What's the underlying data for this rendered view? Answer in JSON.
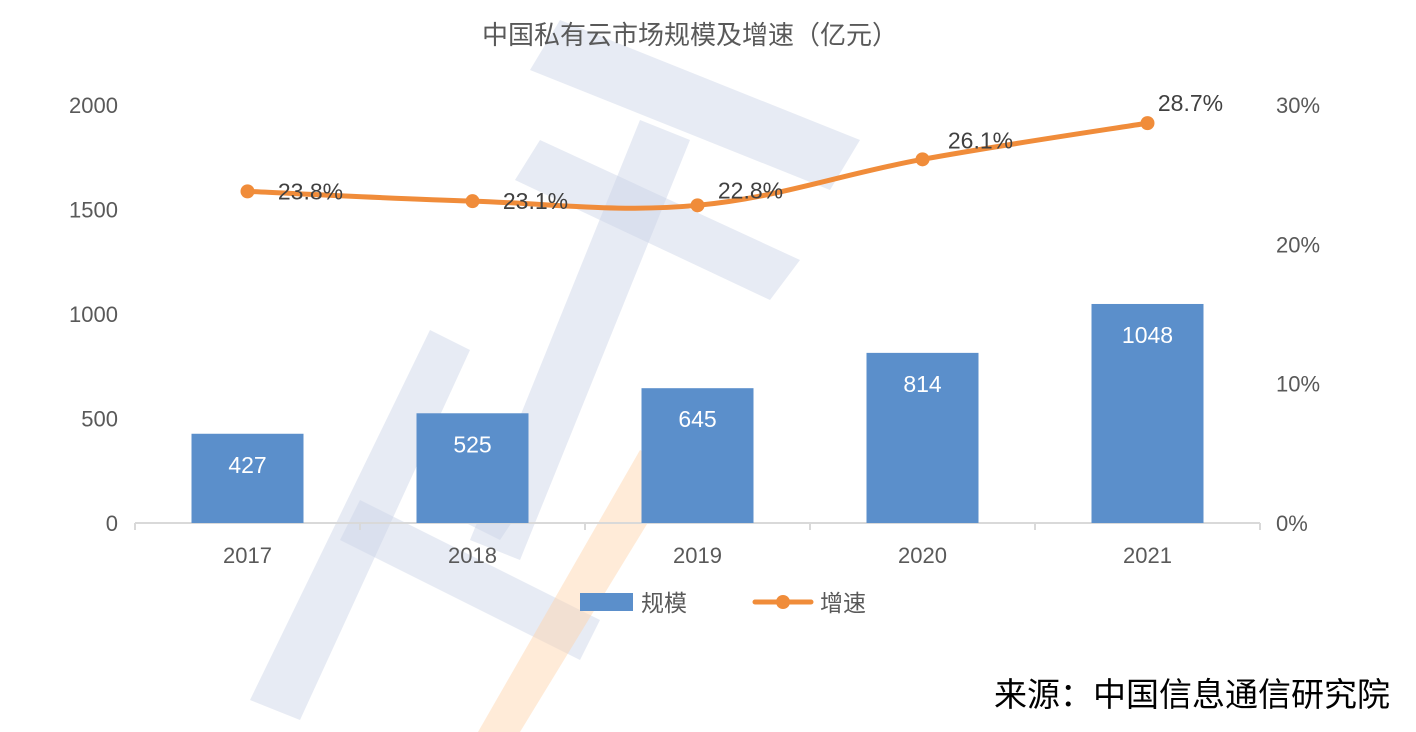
{
  "chart_data": {
    "type": "bar",
    "title": "中国私有云市场规模及增速（亿元）",
    "categories": [
      "2017",
      "2018",
      "2019",
      "2020",
      "2021"
    ],
    "series": [
      {
        "name": "规模",
        "type": "bar",
        "axis": "left",
        "values": [
          427,
          525,
          645,
          814,
          1048
        ],
        "color": "#5b8fcb"
      },
      {
        "name": "增速",
        "type": "line",
        "axis": "right",
        "values": [
          23.8,
          23.1,
          22.8,
          26.1,
          28.7
        ],
        "color": "#f08c3a"
      }
    ],
    "y_left": {
      "range": [
        0,
        2000
      ],
      "ticks": [
        0,
        500,
        1000,
        1500,
        2000
      ]
    },
    "y_right": {
      "range": [
        0,
        30
      ],
      "ticks": [
        0,
        10,
        20,
        30
      ],
      "tick_labels": [
        "0%",
        "10%",
        "20%",
        "30%"
      ]
    },
    "legend_position": "bottom",
    "grid": false
  },
  "source": "来源：中国信息通信研究院",
  "colors": {
    "axis": "#d9d9d9",
    "text": "#595959",
    "watermark_blue": "#c9d3e6",
    "watermark_orange": "#ffd3a8"
  }
}
